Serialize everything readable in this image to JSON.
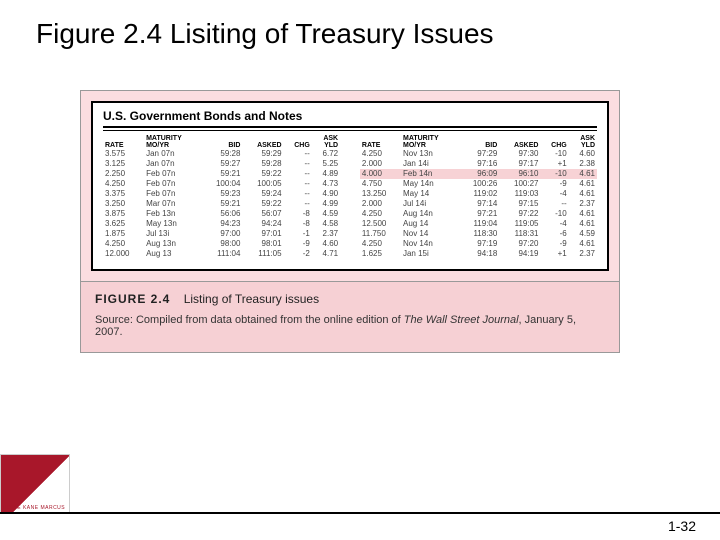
{
  "slide": {
    "title": "Figure 2.4 Lisiting of Treasury Issues",
    "page_number": "1-32"
  },
  "table": {
    "heading": "U.S. Government Bonds and Notes",
    "headers": {
      "rate": "RATE",
      "maturity_top": "MATURITY",
      "maturity": "MO/YR",
      "bid": "BID",
      "asked": "ASKED",
      "chg": "CHG",
      "ask_top": "ASK",
      "yld": "YLD"
    },
    "left_rows": [
      {
        "rate": "3.575",
        "mo": "Jan 07n",
        "bid": "59:28",
        "asked": "59:29",
        "chg": "--",
        "yld": "6.72"
      },
      {
        "rate": "3.125",
        "mo": "Jan 07n",
        "bid": "59:27",
        "asked": "59:28",
        "chg": "--",
        "yld": "5.25"
      },
      {
        "rate": "2.250",
        "mo": "Feb 07n",
        "bid": "59:21",
        "asked": "59:22",
        "chg": "--",
        "yld": "4.89"
      },
      {
        "rate": "4.250",
        "mo": "Feb 07n",
        "bid": "100:04",
        "asked": "100:05",
        "chg": "--",
        "yld": "4.73"
      },
      {
        "rate": "3.375",
        "mo": "Feb 07n",
        "bid": "59:23",
        "asked": "59:24",
        "chg": "--",
        "yld": "4.90"
      },
      {
        "rate": "3.250",
        "mo": "Mar 07n",
        "bid": "59:21",
        "asked": "59:22",
        "chg": "--",
        "yld": "4.99"
      },
      {
        "rate": "3.875",
        "mo": "Feb 13n",
        "bid": "56:06",
        "asked": "56:07",
        "chg": "-8",
        "yld": "4.59"
      },
      {
        "rate": "3.625",
        "mo": "May 13n",
        "bid": "94:23",
        "asked": "94:24",
        "chg": "-8",
        "yld": "4.58"
      },
      {
        "rate": "1.875",
        "mo": "Jul 13i",
        "bid": "97:00",
        "asked": "97:01",
        "chg": "-1",
        "yld": "2.37"
      },
      {
        "rate": "4.250",
        "mo": "Aug 13n",
        "bid": "98:00",
        "asked": "98:01",
        "chg": "-9",
        "yld": "4.60"
      },
      {
        "rate": "12.000",
        "mo": "Aug 13",
        "bid": "111:04",
        "asked": "111:05",
        "chg": "-2",
        "yld": "4.71"
      }
    ],
    "right_rows": [
      {
        "rate": "4.250",
        "mo": "Nov 13n",
        "bid": "97:29",
        "asked": "97:30",
        "chg": "-10",
        "yld": "4.60",
        "hl": false
      },
      {
        "rate": "2.000",
        "mo": "Jan 14i",
        "bid": "97:16",
        "asked": "97:17",
        "chg": "+1",
        "yld": "2.38",
        "hl": false
      },
      {
        "rate": "4.000",
        "mo": "Feb 14n",
        "bid": "96:09",
        "asked": "96:10",
        "chg": "-10",
        "yld": "4.61",
        "hl": true
      },
      {
        "rate": "4.750",
        "mo": "May 14n",
        "bid": "100:26",
        "asked": "100:27",
        "chg": "-9",
        "yld": "4.61",
        "hl": false
      },
      {
        "rate": "13.250",
        "mo": "May 14",
        "bid": "119:02",
        "asked": "119:03",
        "chg": "-4",
        "yld": "4.61",
        "hl": false
      },
      {
        "rate": "2.000",
        "mo": "Jul 14i",
        "bid": "97:14",
        "asked": "97:15",
        "chg": "--",
        "yld": "2.37",
        "hl": false
      },
      {
        "rate": "4.250",
        "mo": "Aug 14n",
        "bid": "97:21",
        "asked": "97:22",
        "chg": "-10",
        "yld": "4.61",
        "hl": false
      },
      {
        "rate": "12.500",
        "mo": "Aug 14",
        "bid": "119:04",
        "asked": "119:05",
        "chg": "-4",
        "yld": "4.61",
        "hl": false
      },
      {
        "rate": "11.750",
        "mo": "Nov 14",
        "bid": "118:30",
        "asked": "118:31",
        "chg": "-6",
        "yld": "4.59",
        "hl": false
      },
      {
        "rate": "4.250",
        "mo": "Nov 14n",
        "bid": "97:19",
        "asked": "97:20",
        "chg": "-9",
        "yld": "4.61",
        "hl": false
      },
      {
        "rate": "1.625",
        "mo": "Jan 15i",
        "bid": "94:18",
        "asked": "94:19",
        "chg": "+1",
        "yld": "2.37",
        "hl": false
      }
    ]
  },
  "caption": {
    "fig_label": "FIGURE 2.4",
    "fig_title": "Listing of Treasury issues",
    "source_prefix": "Source: Compiled from data obtained from the online edition of ",
    "source_ital": "The Wall Street Journal",
    "source_suffix": ", January 5, 2007."
  },
  "logo": {
    "text": "BODIE  KANE  MARCUS"
  },
  "colors": {
    "pink_outer": "#fbdde0",
    "pink_caption": "#f6d0d4",
    "highlight": "#f7d2d5",
    "logo_red": "#a8172a"
  }
}
